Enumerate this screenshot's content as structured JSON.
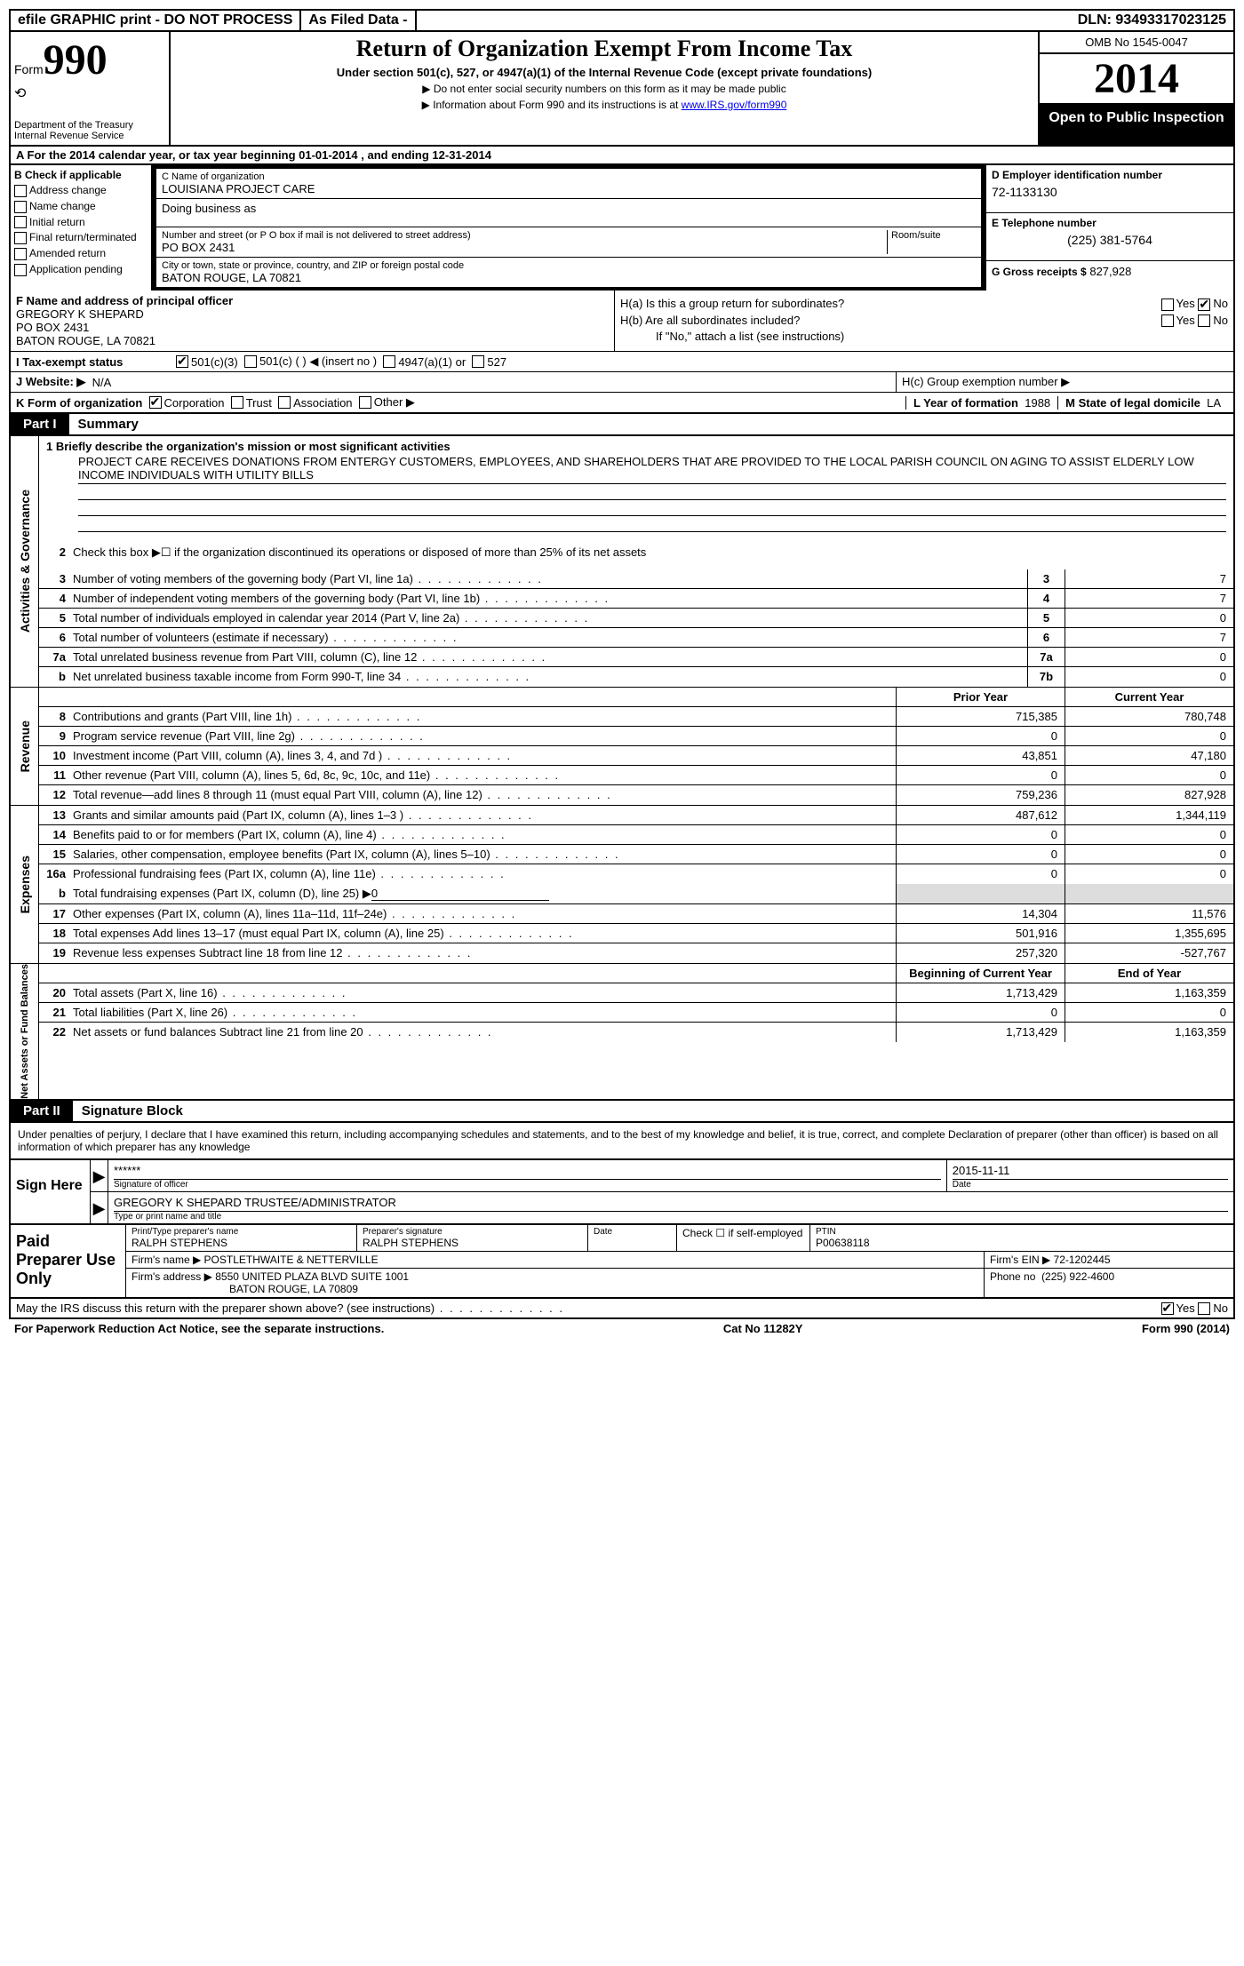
{
  "topbar": {
    "efile": "efile GRAPHIC print - DO NOT PROCESS",
    "asfiled": "As Filed Data -",
    "dln_label": "DLN:",
    "dln": "93493317023125"
  },
  "header": {
    "form_label": "Form",
    "form_no": "990",
    "dept1": "Department of the Treasury",
    "dept2": "Internal Revenue Service",
    "title": "Return of Organization Exempt From Income Tax",
    "subtitle": "Under section 501(c), 527, or 4947(a)(1) of the Internal Revenue Code (except private foundations)",
    "note1": "▶ Do not enter social security numbers on this form as it may be made public",
    "note2_a": "▶ Information about Form 990 and its instructions is at ",
    "note2_link": "www.IRS.gov/form990",
    "omb": "OMB No 1545-0047",
    "year": "2014",
    "inspection": "Open to Public Inspection"
  },
  "row_a": {
    "prefix": "A  For the 2014 calendar year, or tax year beginning ",
    "begin": "01-01-2014",
    "mid": "  , and ending ",
    "end": "12-31-2014"
  },
  "section_b": {
    "header": "B  Check if applicable",
    "items": [
      "Address change",
      "Name change",
      "Initial return",
      "Final return/terminated",
      "Amended return",
      "Application pending"
    ]
  },
  "section_c": {
    "name_label": "C Name of organization",
    "name": "LOUISIANA PROJECT CARE",
    "dba_label": "Doing business as",
    "dba": "",
    "addr_label": "Number and street (or P O  box if mail is not delivered to street address)",
    "room_label": "Room/suite",
    "addr": "PO BOX 2431",
    "city_label": "City or town, state or province, country, and ZIP or foreign postal code",
    "city": "BATON ROUGE, LA  70821"
  },
  "section_d": {
    "label": "D Employer identification number",
    "ein": "72-1133130",
    "e_label": "E Telephone number",
    "phone": "(225) 381-5764",
    "g_label": "G Gross receipts $",
    "gross": "827,928"
  },
  "section_f": {
    "label": "F   Name and address of principal officer",
    "name": "GREGORY K SHEPARD",
    "addr1": "PO BOX 2431",
    "addr2": "BATON ROUGE, LA  70821"
  },
  "section_h": {
    "ha_label": "H(a)  Is this a group return for subordinates?",
    "hb_label": "H(b)  Are all subordinates included?",
    "hb_note": "If \"No,\" attach a list  (see instructions)",
    "hc_label": "H(c)   Group exemption number ▶",
    "yes": "Yes",
    "no": "No",
    "ha_yes": false,
    "ha_no": true,
    "hb_yes": false,
    "hb_no": false
  },
  "row_i": {
    "label": "I    Tax-exempt status",
    "opt1": "501(c)(3)",
    "opt2": "501(c) (   ) ◀ (insert no )",
    "opt3": "4947(a)(1) or",
    "opt4": "527",
    "checked": 0
  },
  "row_j": {
    "label": "J   Website: ▶",
    "value": "N/A"
  },
  "row_k": {
    "label": "K Form of organization",
    "opts": [
      "Corporation",
      "Trust",
      "Association",
      "Other ▶"
    ],
    "checked": 0,
    "l_label": "L Year of formation",
    "l_val": "1988",
    "m_label": "M State of legal domicile",
    "m_val": "LA"
  },
  "part1": {
    "num": "Part I",
    "title": "Summary",
    "side_ag": "Activities & Governance",
    "side_rev": "Revenue",
    "side_exp": "Expenses",
    "side_na": "Net Assets or Fund Balances",
    "line1_label": "1   Briefly describe the organization's mission or most significant activities",
    "mission": "PROJECT CARE RECEIVES DONATIONS FROM ENTERGY CUSTOMERS, EMPLOYEES, AND SHAREHOLDERS THAT ARE PROVIDED TO THE LOCAL PARISH COUNCIL ON AGING TO ASSIST ELDERLY LOW INCOME INDIVIDUALS WITH UTILITY BILLS",
    "line2": "Check this box ▶☐ if the organization discontinued its operations or disposed of more than 25% of its net assets",
    "lines_ag": [
      {
        "n": "3",
        "t": "Number of voting members of the governing body (Part VI, line 1a)",
        "box": "3",
        "v": "7"
      },
      {
        "n": "4",
        "t": "Number of independent voting members of the governing body (Part VI, line 1b)",
        "box": "4",
        "v": "7"
      },
      {
        "n": "5",
        "t": "Total number of individuals employed in calendar year 2014 (Part V, line 2a)",
        "box": "5",
        "v": "0"
      },
      {
        "n": "6",
        "t": "Total number of volunteers (estimate if necessary)",
        "box": "6",
        "v": "7"
      },
      {
        "n": "7a",
        "t": "Total unrelated business revenue from Part VIII, column (C), line 12",
        "box": "7a",
        "v": "0"
      },
      {
        "n": "b",
        "t": "Net unrelated business taxable income from Form 990-T, line 34",
        "box": "7b",
        "v": "0"
      }
    ],
    "hdr_prior": "Prior Year",
    "hdr_current": "Current Year",
    "hdr_boy": "Beginning of Current Year",
    "hdr_eoy": "End of Year",
    "lines_rev": [
      {
        "n": "8",
        "t": "Contributions and grants (Part VIII, line 1h)",
        "p": "715,385",
        "c": "780,748"
      },
      {
        "n": "9",
        "t": "Program service revenue (Part VIII, line 2g)",
        "p": "0",
        "c": "0"
      },
      {
        "n": "10",
        "t": "Investment income (Part VIII, column (A), lines 3, 4, and 7d )",
        "p": "43,851",
        "c": "47,180"
      },
      {
        "n": "11",
        "t": "Other revenue (Part VIII, column (A), lines 5, 6d, 8c, 9c, 10c, and 11e)",
        "p": "0",
        "c": "0"
      },
      {
        "n": "12",
        "t": "Total revenue—add lines 8 through 11 (must equal Part VIII, column (A), line 12)",
        "p": "759,236",
        "c": "827,928"
      }
    ],
    "lines_exp": [
      {
        "n": "13",
        "t": "Grants and similar amounts paid (Part IX, column (A), lines 1–3 )",
        "p": "487,612",
        "c": "1,344,119"
      },
      {
        "n": "14",
        "t": "Benefits paid to or for members (Part IX, column (A), line 4)",
        "p": "0",
        "c": "0"
      },
      {
        "n": "15",
        "t": "Salaries, other compensation, employee benefits (Part IX, column (A), lines 5–10)",
        "p": "0",
        "c": "0"
      },
      {
        "n": "16a",
        "t": "Professional fundraising fees (Part IX, column (A), line 11e)",
        "p": "0",
        "c": "0"
      }
    ],
    "line_b": {
      "n": "b",
      "t": "Total fundraising expenses (Part IX, column (D), line 25) ▶",
      "v": "0"
    },
    "lines_exp2": [
      {
        "n": "17",
        "t": "Other expenses (Part IX, column (A), lines 11a–11d, 11f–24e)",
        "p": "14,304",
        "c": "11,576"
      },
      {
        "n": "18",
        "t": "Total expenses  Add lines 13–17 (must equal Part IX, column (A), line 25)",
        "p": "501,916",
        "c": "1,355,695"
      },
      {
        "n": "19",
        "t": "Revenue less expenses  Subtract line 18 from line 12",
        "p": "257,320",
        "c": "-527,767"
      }
    ],
    "lines_na": [
      {
        "n": "20",
        "t": "Total assets (Part X, line 16)",
        "p": "1,713,429",
        "c": "1,163,359"
      },
      {
        "n": "21",
        "t": "Total liabilities (Part X, line 26)",
        "p": "0",
        "c": "0"
      },
      {
        "n": "22",
        "t": "Net assets or fund balances  Subtract line 21 from line 20",
        "p": "1,713,429",
        "c": "1,163,359"
      }
    ]
  },
  "part2": {
    "num": "Part II",
    "title": "Signature Block",
    "perjury": "Under penalties of perjury, I declare that I have examined this return, including accompanying schedules and statements, and to the best of my knowledge and belief, it is true, correct, and complete  Declaration of preparer (other than officer) is based on all information of which preparer has any knowledge",
    "sign_here": "Sign Here",
    "sig_stars": "******",
    "sig_officer_label": "Signature of officer",
    "sig_date": "2015-11-11",
    "date_label": "Date",
    "officer_name": "GREGORY K SHEPARD TRUSTEE/ADMINISTRATOR",
    "officer_label": "Type or print name and title",
    "paid_prep": "Paid Preparer Use Only",
    "prep_name_label": "Print/Type preparer's name",
    "prep_name": "RALPH STEPHENS",
    "prep_sig_label": "Preparer's signature",
    "prep_sig": "RALPH STEPHENS",
    "prep_date_label": "Date",
    "prep_check_label": "Check ☐ if self-employed",
    "ptin_label": "PTIN",
    "ptin": "P00638118",
    "firm_name_label": "Firm's name     ▶",
    "firm_name": "POSTLETHWAITE & NETTERVILLE",
    "firm_ein_label": "Firm's EIN ▶",
    "firm_ein": "72-1202445",
    "firm_addr_label": "Firm's address ▶",
    "firm_addr1": "8550 UNITED PLAZA BLVD SUITE 1001",
    "firm_addr2": "BATON ROUGE, LA  70809",
    "firm_phone_label": "Phone no",
    "firm_phone": "(225) 922-4600",
    "discuss": "May the IRS discuss this return with the preparer shown above? (see instructions)",
    "discuss_yes": true,
    "yes": "Yes",
    "no": "No"
  },
  "footer": {
    "paperwork": "For Paperwork Reduction Act Notice, see the separate instructions.",
    "cat": "Cat No  11282Y",
    "form": "Form 990 (2014)"
  }
}
